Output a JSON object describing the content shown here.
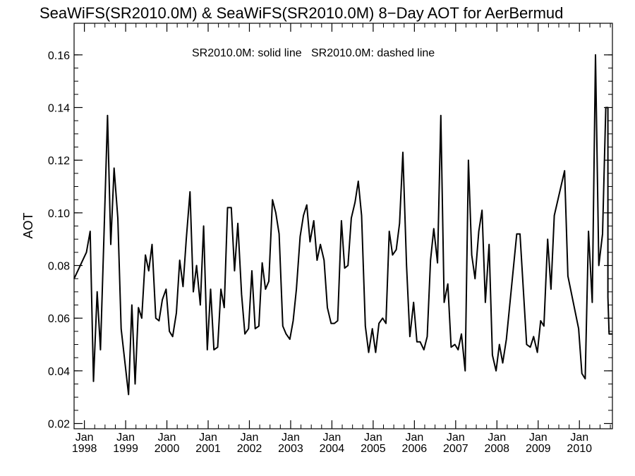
{
  "chart_data": {
    "type": "line",
    "title": "SeaWiFS(SR2010.0M) & SeaWiFS(SR2010.0M) 8−Day AOT for AerBermud",
    "legend": [
      "SR2010.0M: solid line",
      "SR2010.0M: dashed line"
    ],
    "legend_text": "SR2010.0M: solid line   SR2010.0M: dashed line",
    "ylabel": "AOT",
    "xlabel": "",
    "ylim": [
      0.018,
      0.172
    ],
    "xlim": [
      1997.75,
      2010.8
    ],
    "yticks": [
      0.02,
      0.04,
      0.06,
      0.08,
      0.1,
      0.12,
      0.14,
      0.16
    ],
    "ytick_labels": [
      "0.02",
      "0.04",
      "0.06",
      "0.08",
      "0.10",
      "0.12",
      "0.14",
      "0.16"
    ],
    "xticks": [
      {
        "month": "Jan",
        "year": "1998",
        "x": 1998.0
      },
      {
        "month": "Jan",
        "year": "1999",
        "x": 1999.0
      },
      {
        "month": "Jan",
        "year": "2000",
        "x": 2000.0
      },
      {
        "month": "Jan",
        "year": "2001",
        "x": 2001.0
      },
      {
        "month": "Jan",
        "year": "2002",
        "x": 2002.0
      },
      {
        "month": "Jan",
        "year": "2003",
        "x": 2003.0
      },
      {
        "month": "Jan",
        "year": "2004",
        "x": 2004.0
      },
      {
        "month": "Jan",
        "year": "2005",
        "x": 2005.0
      },
      {
        "month": "Jan",
        "year": "2006",
        "x": 2006.0
      },
      {
        "month": "Jan",
        "year": "2007",
        "x": 2007.0
      },
      {
        "month": "Jan",
        "year": "2008",
        "x": 2008.0
      },
      {
        "month": "Jan",
        "year": "2009",
        "x": 2009.0
      },
      {
        "month": "Jan",
        "year": "2010",
        "x": 2010.0
      }
    ],
    "grid": false,
    "series": [
      {
        "name": "SR2010.0M",
        "style": "solid",
        "color": "#000000",
        "points": [
          [
            1997.75,
            0.075
          ],
          [
            1998.05,
            0.085
          ],
          [
            1998.14,
            0.093
          ],
          [
            1998.22,
            0.036
          ],
          [
            1998.31,
            0.07
          ],
          [
            1998.39,
            0.048
          ],
          [
            1998.47,
            0.089
          ],
          [
            1998.56,
            0.137
          ],
          [
            1998.64,
            0.088
          ],
          [
            1998.72,
            0.117
          ],
          [
            1998.81,
            0.098
          ],
          [
            1998.89,
            0.056
          ],
          [
            1999.07,
            0.031
          ],
          [
            1999.15,
            0.065
          ],
          [
            1999.23,
            0.035
          ],
          [
            1999.31,
            0.064
          ],
          [
            1999.39,
            0.06
          ],
          [
            1999.48,
            0.084
          ],
          [
            1999.56,
            0.078
          ],
          [
            1999.64,
            0.088
          ],
          [
            1999.73,
            0.06
          ],
          [
            1999.81,
            0.059
          ],
          [
            1999.89,
            0.067
          ],
          [
            1999.98,
            0.071
          ],
          [
            2000.06,
            0.055
          ],
          [
            2000.14,
            0.053
          ],
          [
            2000.23,
            0.062
          ],
          [
            2000.31,
            0.082
          ],
          [
            2000.39,
            0.072
          ],
          [
            2000.47,
            0.09
          ],
          [
            2000.56,
            0.108
          ],
          [
            2000.64,
            0.07
          ],
          [
            2000.72,
            0.08
          ],
          [
            2000.81,
            0.065
          ],
          [
            2000.89,
            0.095
          ],
          [
            2000.98,
            0.048
          ],
          [
            2001.06,
            0.071
          ],
          [
            2001.14,
            0.048
          ],
          [
            2001.23,
            0.049
          ],
          [
            2001.31,
            0.071
          ],
          [
            2001.39,
            0.064
          ],
          [
            2001.47,
            0.102
          ],
          [
            2001.56,
            0.102
          ],
          [
            2001.64,
            0.078
          ],
          [
            2001.72,
            0.096
          ],
          [
            2001.81,
            0.069
          ],
          [
            2001.89,
            0.054
          ],
          [
            2001.98,
            0.056
          ],
          [
            2002.06,
            0.078
          ],
          [
            2002.14,
            0.056
          ],
          [
            2002.23,
            0.057
          ],
          [
            2002.31,
            0.081
          ],
          [
            2002.39,
            0.071
          ],
          [
            2002.47,
            0.074
          ],
          [
            2002.56,
            0.105
          ],
          [
            2002.64,
            0.1
          ],
          [
            2002.72,
            0.092
          ],
          [
            2002.81,
            0.057
          ],
          [
            2002.89,
            0.054
          ],
          [
            2002.98,
            0.052
          ],
          [
            2003.06,
            0.059
          ],
          [
            2003.14,
            0.071
          ],
          [
            2003.23,
            0.091
          ],
          [
            2003.31,
            0.099
          ],
          [
            2003.39,
            0.103
          ],
          [
            2003.47,
            0.089
          ],
          [
            2003.56,
            0.097
          ],
          [
            2003.64,
            0.082
          ],
          [
            2003.72,
            0.088
          ],
          [
            2003.81,
            0.082
          ],
          [
            2003.89,
            0.064
          ],
          [
            2003.98,
            0.058
          ],
          [
            2004.06,
            0.058
          ],
          [
            2004.14,
            0.059
          ],
          [
            2004.23,
            0.097
          ],
          [
            2004.31,
            0.079
          ],
          [
            2004.39,
            0.08
          ],
          [
            2004.47,
            0.098
          ],
          [
            2004.56,
            0.104
          ],
          [
            2004.64,
            0.112
          ],
          [
            2004.72,
            0.099
          ],
          [
            2004.81,
            0.057
          ],
          [
            2004.89,
            0.047
          ],
          [
            2004.98,
            0.056
          ],
          [
            2005.06,
            0.047
          ],
          [
            2005.14,
            0.058
          ],
          [
            2005.23,
            0.06
          ],
          [
            2005.31,
            0.058
          ],
          [
            2005.39,
            0.093
          ],
          [
            2005.47,
            0.084
          ],
          [
            2005.56,
            0.086
          ],
          [
            2005.64,
            0.096
          ],
          [
            2005.72,
            0.123
          ],
          [
            2005.81,
            0.08
          ],
          [
            2005.89,
            0.053
          ],
          [
            2005.98,
            0.066
          ],
          [
            2006.06,
            0.051
          ],
          [
            2006.14,
            0.051
          ],
          [
            2006.23,
            0.048
          ],
          [
            2006.31,
            0.053
          ],
          [
            2006.39,
            0.082
          ],
          [
            2006.47,
            0.094
          ],
          [
            2006.56,
            0.081
          ],
          [
            2006.64,
            0.137
          ],
          [
            2006.72,
            0.066
          ],
          [
            2006.81,
            0.073
          ],
          [
            2006.89,
            0.049
          ],
          [
            2006.98,
            0.05
          ],
          [
            2007.06,
            0.048
          ],
          [
            2007.14,
            0.054
          ],
          [
            2007.23,
            0.04
          ],
          [
            2007.31,
            0.12
          ],
          [
            2007.39,
            0.084
          ],
          [
            2007.47,
            0.075
          ],
          [
            2007.56,
            0.093
          ],
          [
            2007.64,
            0.101
          ],
          [
            2007.72,
            0.066
          ],
          [
            2007.81,
            0.088
          ],
          [
            2007.89,
            0.046
          ],
          [
            2007.98,
            0.04
          ],
          [
            2008.06,
            0.05
          ],
          [
            2008.14,
            0.043
          ],
          [
            2008.23,
            0.052
          ],
          [
            2008.48,
            0.092
          ],
          [
            2008.56,
            0.092
          ],
          [
            2008.64,
            0.071
          ],
          [
            2008.72,
            0.05
          ],
          [
            2008.81,
            0.049
          ],
          [
            2008.89,
            0.053
          ],
          [
            2008.98,
            0.047
          ],
          [
            2009.06,
            0.059
          ],
          [
            2009.14,
            0.057
          ],
          [
            2009.23,
            0.09
          ],
          [
            2009.31,
            0.071
          ],
          [
            2009.39,
            0.099
          ],
          [
            2009.64,
            0.116
          ],
          [
            2009.72,
            0.076
          ],
          [
            2009.98,
            0.056
          ],
          [
            2010.06,
            0.039
          ],
          [
            2010.14,
            0.037
          ],
          [
            2010.22,
            0.093
          ],
          [
            2010.31,
            0.066
          ],
          [
            2010.39,
            0.16
          ],
          [
            2010.47,
            0.08
          ],
          [
            2010.56,
            0.092
          ],
          [
            2010.64,
            0.14
          ],
          [
            2010.69,
            0.14
          ],
          [
            2010.69,
            0.068
          ],
          [
            2010.72,
            0.054
          ],
          [
            2010.8,
            0.054
          ]
        ]
      }
    ]
  }
}
